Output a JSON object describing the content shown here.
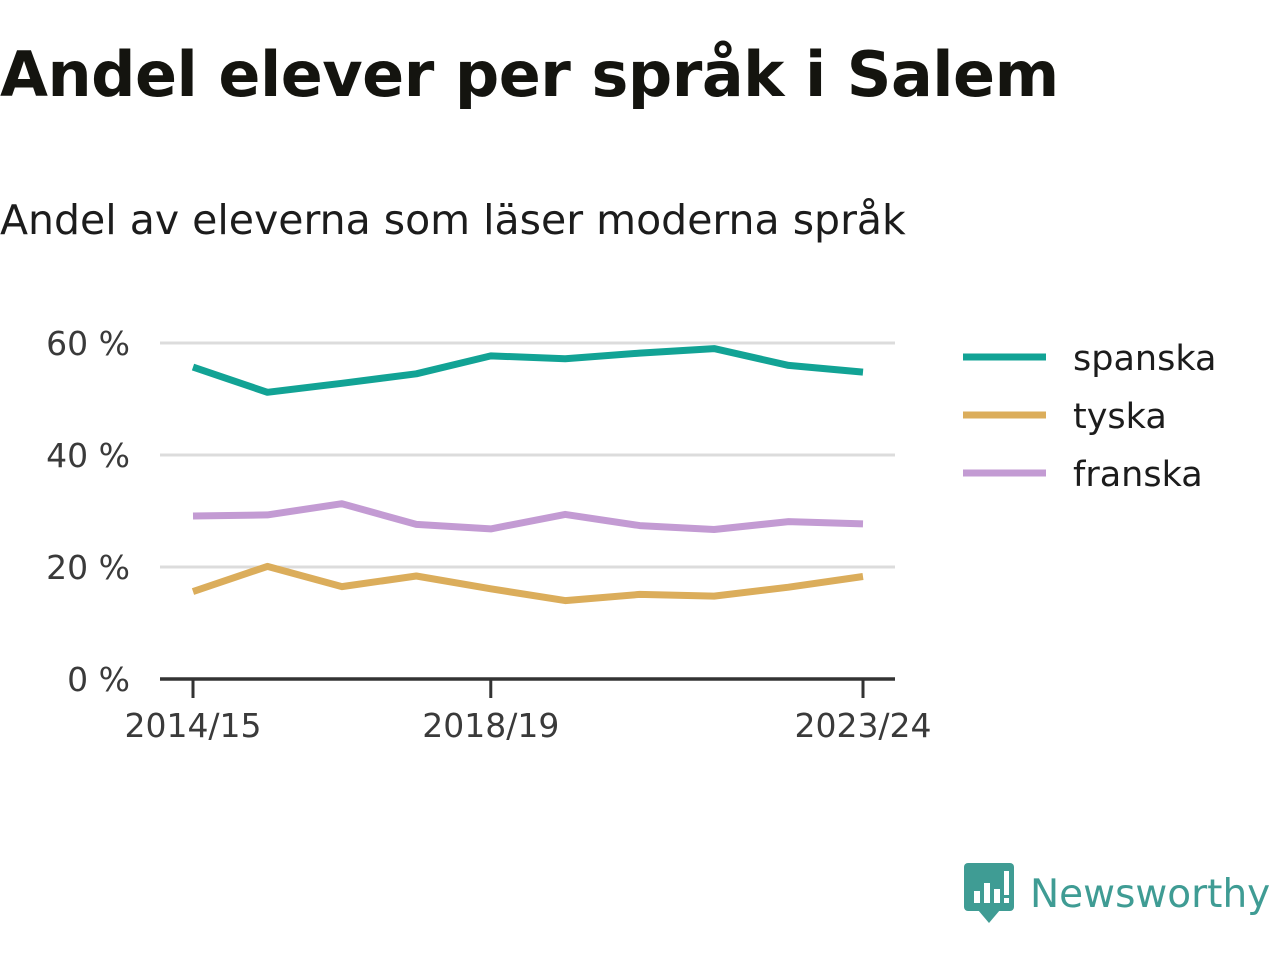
{
  "title": "Andel elever per språk i Salem",
  "subtitle": "Andel av eleverna som läser moderna språk",
  "brand": {
    "name": "Newsworthy",
    "color": "#3f9c94",
    "icon": "newsworthy-logo-icon"
  },
  "chart_data": {
    "type": "line",
    "title": "Andel elever per språk i Salem",
    "subtitle": "Andel av eleverna som läser moderna språk",
    "xlabel": "",
    "ylabel": "",
    "x": [
      "2014/15",
      "2015/16",
      "2016/17",
      "2017/18",
      "2018/19",
      "2019/20",
      "2020/21",
      "2021/22",
      "2022/23",
      "2023/24"
    ],
    "x_tick_labels": [
      "2014/15",
      "2018/19",
      "2023/24"
    ],
    "y_ticks": [
      {
        "value": 0,
        "label": "0 %"
      },
      {
        "value": 20,
        "label": "20 %"
      },
      {
        "value": 40,
        "label": "40 %"
      },
      {
        "value": 60,
        "label": "60 %"
      }
    ],
    "ylim": [
      0,
      60
    ],
    "grid": true,
    "legend_position": "right",
    "series": [
      {
        "name": "spanska",
        "color": "#12a395",
        "values": [
          55.7,
          51.2,
          52.8,
          54.5,
          57.7,
          57.2,
          58.2,
          59.0,
          56.0,
          54.8
        ]
      },
      {
        "name": "tyska",
        "color": "#dbad5b",
        "values": [
          15.6,
          20.1,
          16.5,
          18.4,
          16.1,
          14.0,
          15.1,
          14.8,
          16.4,
          18.3
        ]
      },
      {
        "name": "franska",
        "color": "#c39bd3",
        "values": [
          29.1,
          29.3,
          31.3,
          27.6,
          26.8,
          29.4,
          27.4,
          26.7,
          28.1,
          27.7
        ]
      }
    ]
  }
}
